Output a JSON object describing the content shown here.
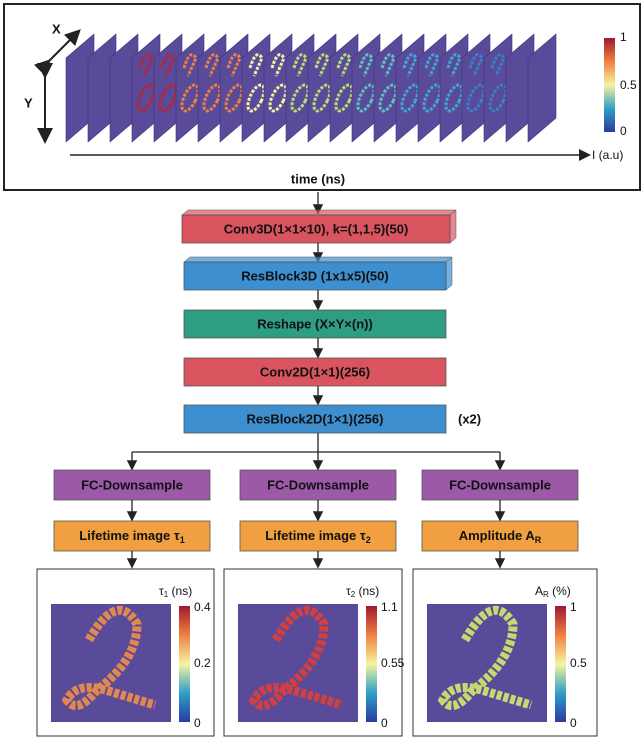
{
  "input_panel": {
    "x_label": "X",
    "y_label": "Y",
    "time_label": "time (ns)",
    "colorbar": {
      "max": "1",
      "mid": "0.5",
      "min": "0",
      "label": "I (a.u)"
    }
  },
  "layers": [
    "Conv3D(1×1×10), k=(1,1,5)(50)",
    "ResBlock3D (1x1x5)(50)",
    "Reshape (X×Y×(n))",
    "Conv2D(1×1)(256)",
    "ResBlock2D(1×1)(256)"
  ],
  "repeat": "(x2)",
  "branches": [
    {
      "downsample": "FC-Downsample",
      "output": {
        "text": "Lifetime image τ",
        "sub": "1"
      },
      "colorbar": {
        "title": "τ",
        "title_sub": "1",
        "unit": " (ns)",
        "max": "0.4",
        "mid": "0.2",
        "min": "0"
      }
    },
    {
      "downsample": "FC-Downsample",
      "output": {
        "text": "Lifetime image τ",
        "sub": "2"
      },
      "colorbar": {
        "title": "τ",
        "title_sub": "2",
        "unit": " (ns)",
        "max": "1.1",
        "mid": "0.55",
        "min": "0"
      }
    },
    {
      "downsample": "FC-Downsample",
      "output": {
        "text": "Amplitude A",
        "sub": "R"
      },
      "colorbar": {
        "title": "A",
        "title_sub": "R",
        "unit": " (%)",
        "max": "1",
        "mid": "0.5",
        "min": "0"
      }
    }
  ]
}
